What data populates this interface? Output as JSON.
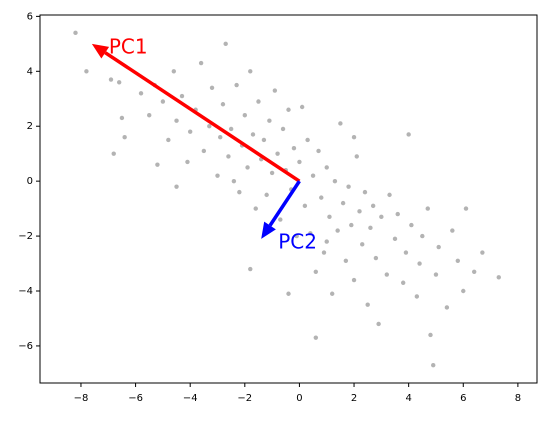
{
  "chart_data": {
    "type": "scatter",
    "series": [
      {
        "color": "#808080",
        "x": [
          -8.2,
          -7.8,
          -6.9,
          -6.6,
          -6.4,
          -6.5,
          -6.8,
          -5.8,
          -5.5,
          -5.3,
          -5.2,
          -5.0,
          -4.8,
          -4.6,
          -4.5,
          -4.3,
          -4.1,
          -4.0,
          -3.8,
          -3.6,
          -3.5,
          -3.3,
          -3.2,
          -3.0,
          -2.9,
          -2.8,
          -2.7,
          -2.6,
          -2.5,
          -2.3,
          -2.2,
          -2.1,
          -2.0,
          -1.9,
          -1.8,
          -1.7,
          -1.6,
          -1.5,
          -1.4,
          -1.3,
          -1.2,
          -1.1,
          -1.0,
          -0.9,
          -0.8,
          -0.7,
          -0.6,
          -0.5,
          -0.4,
          -0.3,
          -0.2,
          -0.1,
          0.0,
          0.1,
          0.2,
          0.3,
          0.4,
          0.5,
          0.6,
          0.7,
          0.8,
          0.9,
          1.0,
          1.1,
          1.2,
          1.3,
          1.4,
          1.5,
          1.6,
          1.7,
          1.8,
          1.9,
          2.0,
          2.1,
          2.2,
          2.3,
          2.4,
          2.5,
          2.6,
          2.7,
          2.8,
          2.9,
          3.0,
          3.2,
          3.3,
          3.5,
          3.6,
          3.8,
          3.9,
          4.0,
          4.1,
          4.3,
          4.4,
          4.5,
          4.7,
          4.8,
          4.9,
          5.0,
          5.1,
          5.4,
          5.6,
          5.8,
          6.0,
          6.4,
          6.7,
          7.3,
          0.6,
          -1.8,
          -0.4,
          6.1,
          -4.5,
          2.0,
          1.0,
          -2.4
        ],
        "values": [
          5.4,
          4.0,
          3.7,
          3.6,
          1.6,
          2.3,
          1.0,
          3.2,
          2.4,
          3.5,
          0.6,
          2.9,
          1.5,
          4.0,
          2.2,
          3.1,
          0.7,
          1.8,
          2.6,
          4.3,
          1.1,
          2.0,
          3.4,
          0.2,
          1.6,
          2.8,
          5.0,
          0.9,
          1.9,
          3.5,
          -0.4,
          1.3,
          2.4,
          0.5,
          4.0,
          1.7,
          -1.0,
          2.9,
          0.8,
          1.5,
          -0.5,
          2.2,
          0.3,
          3.3,
          1.0,
          -1.4,
          1.9,
          0.4,
          2.6,
          -0.3,
          1.2,
          -2.0,
          0.7,
          2.7,
          -0.9,
          1.5,
          -1.9,
          0.2,
          -3.3,
          1.1,
          -0.6,
          -2.6,
          0.5,
          -1.3,
          -4.1,
          0.0,
          -1.8,
          2.1,
          -0.8,
          -2.9,
          -0.2,
          -1.6,
          -3.6,
          0.9,
          -1.1,
          -2.3,
          -0.4,
          -4.5,
          -1.7,
          -0.9,
          -2.8,
          -5.2,
          -1.3,
          -3.4,
          -0.5,
          -2.1,
          -1.2,
          -3.7,
          -2.6,
          1.7,
          -1.6,
          -4.2,
          -3.0,
          -2.0,
          -1.0,
          -5.6,
          -6.7,
          -3.4,
          -2.4,
          -4.6,
          -1.8,
          -2.9,
          -4.0,
          -3.3,
          -2.6,
          -3.5,
          -5.7,
          -3.2,
          -4.1,
          -1.0,
          -0.2,
          1.6,
          -2.2,
          0.0
        ]
      }
    ],
    "arrows": [
      {
        "label": "PC1",
        "color": "#ff0000",
        "start": [
          0,
          0
        ],
        "end": [
          -7.6,
          5.0
        ]
      },
      {
        "label": "PC2",
        "color": "#0000ff",
        "start": [
          0,
          0
        ],
        "end": [
          -1.4,
          -2.1
        ]
      }
    ],
    "xlim": [
      -9.5,
      8.7
    ],
    "ylim": [
      -7.35,
      6.05
    ],
    "xticks": [
      {
        "value": -8,
        "label": "−8"
      },
      {
        "value": -6,
        "label": "−6"
      },
      {
        "value": -4,
        "label": "−4"
      },
      {
        "value": -2,
        "label": "−2"
      },
      0,
      2,
      4,
      6,
      8
    ],
    "yticks": [
      {
        "value": -6,
        "label": "−6"
      },
      {
        "value": -4,
        "label": "−4"
      },
      {
        "value": -2,
        "label": "−2"
      },
      0,
      2,
      4,
      6
    ]
  }
}
